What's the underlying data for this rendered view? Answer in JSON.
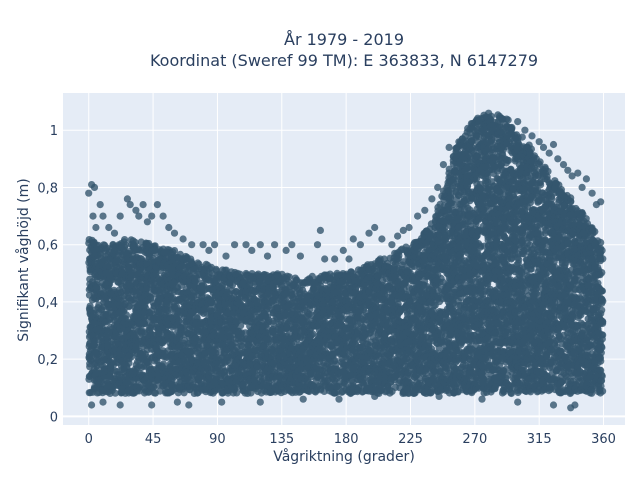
{
  "chart_data": {
    "type": "scatter",
    "title": [
      "År 1979 - 2019",
      "Koordinat (Sweref 99 TM): E 363833, N 6147279"
    ],
    "xlabel": "Vågriktning (grader)",
    "ylabel": "Signifikant våghöjd (m)",
    "xlim": [
      -18,
      375
    ],
    "ylim": [
      -0.03,
      1.13
    ],
    "xticks": [
      0,
      45,
      90,
      135,
      180,
      225,
      270,
      315,
      360
    ],
    "xtick_labels": [
      "0",
      "45",
      "90",
      "135",
      "180",
      "225",
      "270",
      "315",
      "360"
    ],
    "yticks": [
      0,
      0.2,
      0.4,
      0.6,
      0.8,
      1
    ],
    "ytick_labels": [
      "0",
      "0,2",
      "0,4",
      "0,6",
      "0,8",
      "1"
    ],
    "grid": true,
    "plot_background": "#e5ecf6",
    "marker_color": "#34566e",
    "upper_envelope": {
      "x": [
        0,
        10,
        20,
        30,
        45,
        60,
        75,
        90,
        105,
        120,
        135,
        150,
        165,
        180,
        195,
        210,
        225,
        240,
        250,
        260,
        270,
        280,
        290,
        300,
        315,
        330,
        340,
        350,
        360
      ],
      "y": [
        0.62,
        0.6,
        0.62,
        0.62,
        0.6,
        0.58,
        0.54,
        0.52,
        0.5,
        0.5,
        0.5,
        0.48,
        0.5,
        0.5,
        0.53,
        0.57,
        0.6,
        0.68,
        0.82,
        0.98,
        1.04,
        1.06,
        1.05,
        1.0,
        0.9,
        0.8,
        0.74,
        0.68,
        0.62
      ]
    },
    "lower_envelope_y": 0.08,
    "scattered_points": [
      [
        0,
        0.78
      ],
      [
        2,
        0.81
      ],
      [
        4,
        0.8
      ],
      [
        3,
        0.7
      ],
      [
        5,
        0.66
      ],
      [
        8,
        0.74
      ],
      [
        10,
        0.7
      ],
      [
        14,
        0.66
      ],
      [
        18,
        0.64
      ],
      [
        22,
        0.7
      ],
      [
        27,
        0.76
      ],
      [
        29,
        0.74
      ],
      [
        33,
        0.72
      ],
      [
        35,
        0.7
      ],
      [
        38,
        0.74
      ],
      [
        41,
        0.68
      ],
      [
        44,
        0.7
      ],
      [
        48,
        0.74
      ],
      [
        52,
        0.7
      ],
      [
        56,
        0.66
      ],
      [
        60,
        0.64
      ],
      [
        66,
        0.62
      ],
      [
        72,
        0.6
      ],
      [
        80,
        0.6
      ],
      [
        84,
        0.58
      ],
      [
        88,
        0.6
      ],
      [
        96,
        0.56
      ],
      [
        102,
        0.6
      ],
      [
        110,
        0.6
      ],
      [
        114,
        0.58
      ],
      [
        120,
        0.6
      ],
      [
        125,
        0.56
      ],
      [
        130,
        0.6
      ],
      [
        138,
        0.58
      ],
      [
        142,
        0.6
      ],
      [
        148,
        0.56
      ],
      [
        160,
        0.6
      ],
      [
        162,
        0.65
      ],
      [
        165,
        0.55
      ],
      [
        172,
        0.55
      ],
      [
        178,
        0.58
      ],
      [
        182,
        0.55
      ],
      [
        185,
        0.62
      ],
      [
        190,
        0.6
      ],
      [
        196,
        0.64
      ],
      [
        200,
        0.66
      ],
      [
        205,
        0.62
      ],
      [
        212,
        0.6
      ],
      [
        216,
        0.63
      ],
      [
        220,
        0.65
      ],
      [
        224,
        0.66
      ],
      [
        230,
        0.7
      ],
      [
        235,
        0.72
      ],
      [
        240,
        0.76
      ],
      [
        244,
        0.8
      ],
      [
        248,
        0.88
      ],
      [
        252,
        0.94
      ],
      [
        300,
        1.03
      ],
      [
        305,
        1.0
      ],
      [
        310,
        0.98
      ],
      [
        315,
        0.96
      ],
      [
        318,
        0.94
      ],
      [
        322,
        0.92
      ],
      [
        325,
        0.95
      ],
      [
        328,
        0.9
      ],
      [
        332,
        0.88
      ],
      [
        335,
        0.86
      ],
      [
        338,
        0.84
      ],
      [
        342,
        0.85
      ],
      [
        345,
        0.8
      ],
      [
        348,
        0.83
      ],
      [
        352,
        0.78
      ],
      [
        355,
        0.74
      ],
      [
        358,
        0.75
      ],
      [
        346,
        0.64
      ],
      [
        352,
        0.55
      ],
      [
        356,
        0.52
      ],
      [
        359,
        0.58
      ],
      [
        2,
        0.04
      ],
      [
        10,
        0.05
      ],
      [
        22,
        0.04
      ],
      [
        44,
        0.04
      ],
      [
        62,
        0.05
      ],
      [
        70,
        0.04
      ],
      [
        93,
        0.05
      ],
      [
        120,
        0.05
      ],
      [
        150,
        0.06
      ],
      [
        175,
        0.06
      ],
      [
        200,
        0.07
      ],
      [
        245,
        0.07
      ],
      [
        275,
        0.06
      ],
      [
        300,
        0.05
      ],
      [
        325,
        0.04
      ],
      [
        337,
        0.03
      ],
      [
        340,
        0.04
      ]
    ]
  }
}
